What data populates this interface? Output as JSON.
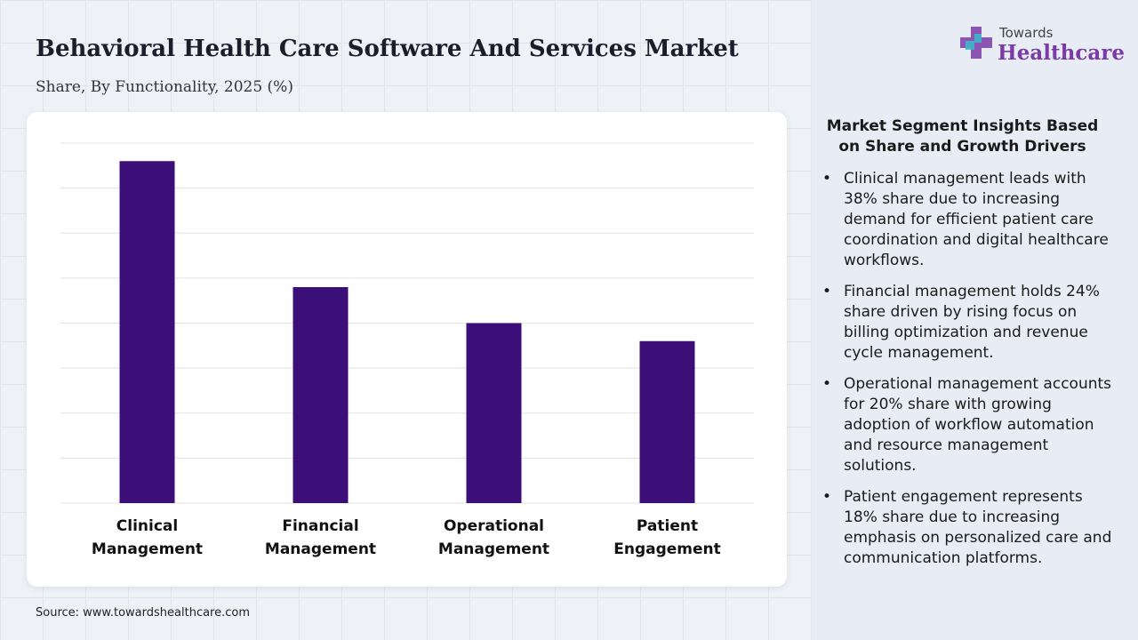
{
  "header": {
    "title": "Behavioral Health Care Software And Services Market",
    "subtitle": "Share, By Functionality, 2025 (%)"
  },
  "logo": {
    "line1": "Towards",
    "line2": "Healthcare"
  },
  "chart_data": {
    "type": "bar",
    "categories": [
      "Clinical Management",
      "Financial Management",
      "Operational Management",
      "Patient Engagement"
    ],
    "values": [
      38,
      24,
      20,
      18
    ],
    "color": "#3c0f78",
    "ylim": [
      0,
      40
    ],
    "yticks": [
      0,
      5,
      10,
      15,
      20,
      25,
      30,
      35,
      40
    ],
    "grid": true
  },
  "insights": {
    "title": "Market Segment Insights Based on Share and Growth Drivers",
    "items": [
      "Clinical management leads with 38% share due to increasing demand for efficient patient care coordination and digital healthcare workflows.",
      "Financial management holds 24% share driven by rising focus on billing optimization and revenue cycle management.",
      "Operational management accounts for 20% share with growing adoption of workflow automation and resource management solutions.",
      "Patient engagement represents 18% share due to increasing emphasis on personalized care and communication platforms."
    ]
  },
  "source": "Source: www.towardshealthcare.com"
}
